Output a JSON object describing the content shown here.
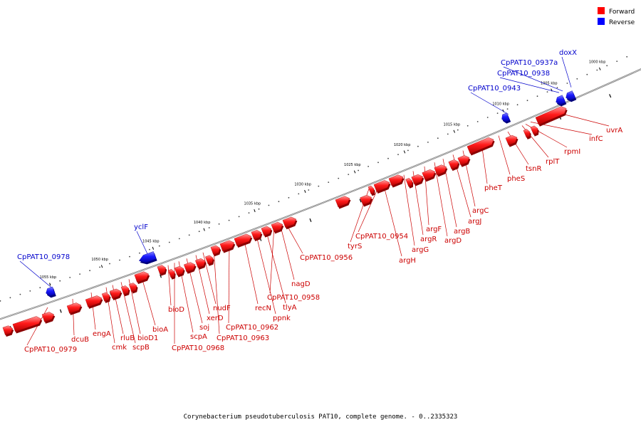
{
  "colors": {
    "forward": "#ff0000",
    "reverse": "#0000ff",
    "forward_label": "#cc0000",
    "reverse_label": "#0000cc",
    "backbone": "#777777"
  },
  "legend": [
    {
      "label": "Forward",
      "color": "#ff0000"
    },
    {
      "label": "Reverse",
      "color": "#0000ff"
    }
  ],
  "caption": "Corynebacterium pseudotuberculosis PAT10, complete genome. - 0..2335323",
  "ticks": [
    "1000 kbp",
    "1005 kbp",
    "1010 kbp",
    "1015 kbp",
    "1020 kbp",
    "1025 kbp",
    "1030 kbp",
    "1035 kbp",
    "1040 kbp",
    "1045 kbp",
    "1050 kbp",
    "1055 kbp"
  ],
  "reverse_genes": [
    "doxX",
    "CpPAT10_0937a",
    "CpPAT10_0938",
    "CpPAT10_0943",
    "yclF",
    "CpPAT10_0978"
  ],
  "forward_genes": [
    "uvrA",
    "infC",
    "rpmI",
    "rplT",
    "tsnR",
    "pheS",
    "pheT",
    "argC",
    "argJ",
    "argB",
    "argD",
    "argF",
    "argR",
    "argG",
    "argH",
    "CpPAT10_0954",
    "tyrS",
    "CpPAT10_0956",
    "nagD",
    "CpPAT10_0958",
    "tlyA",
    "ppnk",
    "recN",
    "CpPAT10_0962",
    "CpPAT10_0963",
    "nudF",
    "xerD",
    "soj",
    "scpA",
    "CpPAT10_0968",
    "bioD",
    "bioA",
    "bioD1",
    "scpB",
    "rluB",
    "cmk",
    "engA",
    "dcuB",
    "CpPAT10_0979"
  ]
}
